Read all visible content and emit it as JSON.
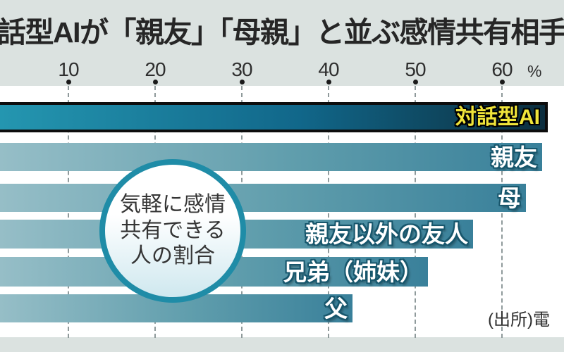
{
  "title": "話型AIが「親友」「母親」と並ぶ感情共有相手",
  "axis": {
    "tick_values": [
      10,
      20,
      30,
      40,
      50,
      60
    ],
    "unit_label": "%"
  },
  "badge": {
    "lines": [
      "気軽に感情",
      "共有できる",
      "人の割合"
    ]
  },
  "source": "(出所)電",
  "chart_data": {
    "type": "bar",
    "orientation": "horizontal",
    "title": "話型AIが「親友」「母親」と並ぶ感情共有相手",
    "annotation": "気軽に感情共有できる人の割合",
    "categories": [
      "対話型AI",
      "親友",
      "母",
      "親友以外の友人",
      "兄弟（姉妹）",
      "父"
    ],
    "values": [
      65.3,
      64.6,
      62.8,
      56.7,
      51.5,
      42.8
    ],
    "unit": "%",
    "x_ticks": [
      10,
      20,
      30,
      40,
      50,
      60
    ],
    "xlim_visible": [
      2,
      67
    ],
    "grid": "dashed-vertical",
    "legend": false,
    "highlight_category": "対話型AI"
  },
  "colors": {
    "header_bg": "#dbe2e0",
    "footer_bg": "#dbe2e0",
    "bar_gradient": [
      "#96bec7",
      "#5f9dac",
      "#39809a"
    ],
    "highlight_bar_gradient": [
      "#2496b0",
      "#11678a",
      "#0c2e3e"
    ],
    "highlight_bar_border": "#0d0d0d",
    "label_color": "#ffffff",
    "label_outline": "#17566c",
    "highlight_label_color": "#f0e53a",
    "highlight_label_outline": "#000000",
    "grid_line": "#8f9a9b",
    "tick_dot": "#1a1a1a",
    "text": "#2e2e2e",
    "badge_ring": "#1f8ca7",
    "badge_fill_bottom": "#cfe8ef"
  }
}
